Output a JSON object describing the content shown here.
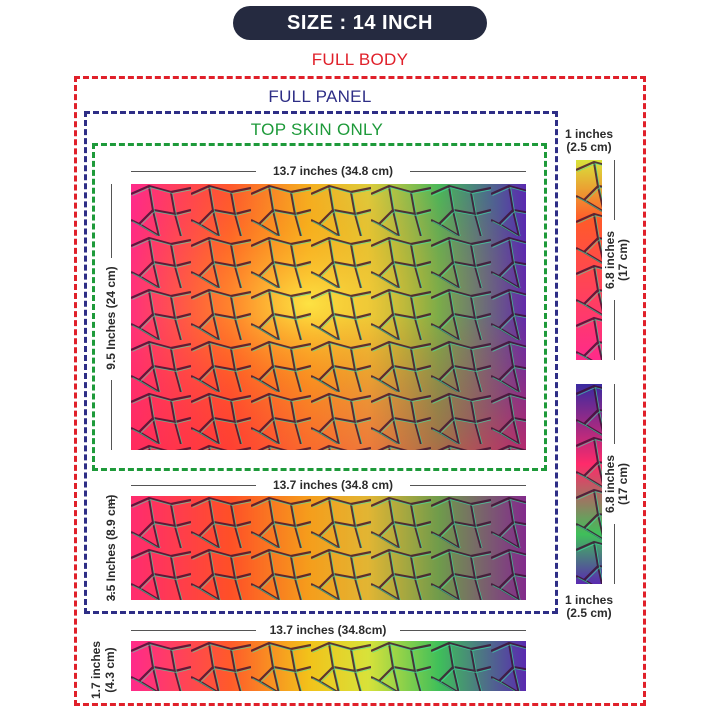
{
  "header": {
    "size_label": "SIZE : 14 INCH"
  },
  "colors": {
    "header_bg": "#252a40",
    "full_body": "#e0202a",
    "full_panel": "#2e2e86",
    "top_skin": "#1e9a3a"
  },
  "sections": {
    "full_body": "FULL BODY",
    "full_panel": "FULL PANEL",
    "top_skin": "TOP SKIN ONLY"
  },
  "top_skin_piece": {
    "width_label": "13.7 inches (34.8 cm)",
    "height_label": "9.5 Inches (24 cm)"
  },
  "keyboard_piece": {
    "width_label": "13.7 inches (34.8 cm)",
    "height_label": "3.5 Inches (8.9 cm)"
  },
  "bottom_piece": {
    "width_label": "13.7 inches (34.8cm)",
    "height_line1": "1.7 inches",
    "height_line2": "(4.3 cm)"
  },
  "side_strip_top": {
    "width_line1": "1 inches",
    "width_line2": "(2.5 cm)",
    "height_line1": "6.8 inches",
    "height_line2": "(17 cm)"
  },
  "side_strip_bottom": {
    "width_line1": "1 inches",
    "width_line2": "(2.5 cm)",
    "height_line1": "6.8 inches",
    "height_line2": "(17 cm)"
  }
}
